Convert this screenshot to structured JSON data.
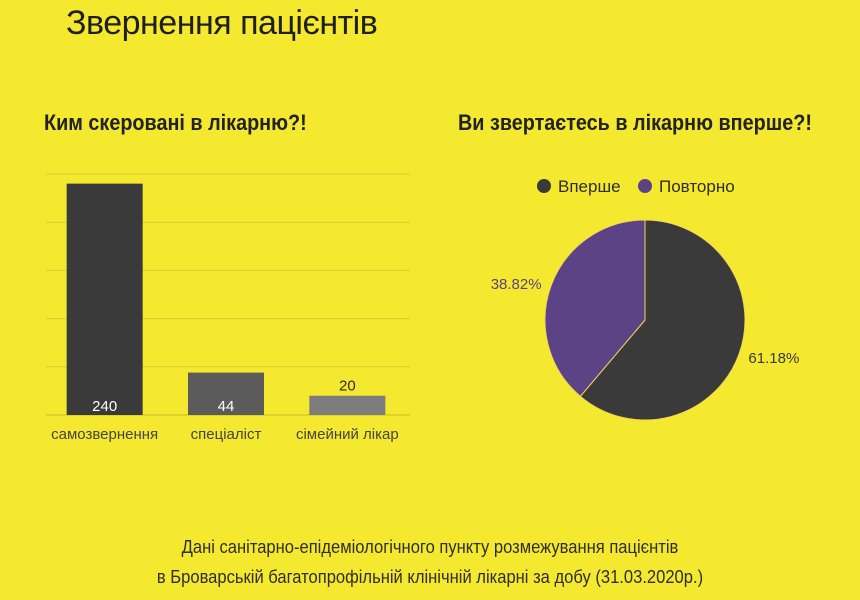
{
  "page": {
    "title": "Звернення пацієнтів",
    "footer_line1": "Дані санітарно-епідеміологічного пункту розмежування пацієнтів",
    "footer_line2": "в Броварській багатопрофільній клінічній лікарні за добу (31.03.2020р.)"
  },
  "colors": {
    "background": "#f5e92f",
    "bar_dark": "#3a3a3a",
    "bar_mid": "#5b5b5b",
    "bar_light": "#7d7d7d",
    "pie_first": "#3a3a3a",
    "pie_repeat": "#5c4385",
    "pie_label_first": "#3a3a3a",
    "pie_label_repeat": "#5c4385"
  },
  "chart_data": [
    {
      "type": "bar",
      "title": "Ким скеровані в лікарню?!",
      "categories": [
        "самозвернення",
        "спеціаліст",
        "сімейний лікар"
      ],
      "values": [
        240,
        44,
        20
      ],
      "value_labels": [
        "240",
        "44",
        "20"
      ],
      "ylim": [
        0,
        250
      ],
      "grid": true
    },
    {
      "type": "pie",
      "title": "Ви звертаєтесь в лікарню вперше?!",
      "labels": [
        "Вперше",
        "Повторно"
      ],
      "values": [
        61.18,
        38.82
      ],
      "value_labels": [
        "61.18%",
        "38.82%"
      ],
      "legend": "top"
    }
  ]
}
